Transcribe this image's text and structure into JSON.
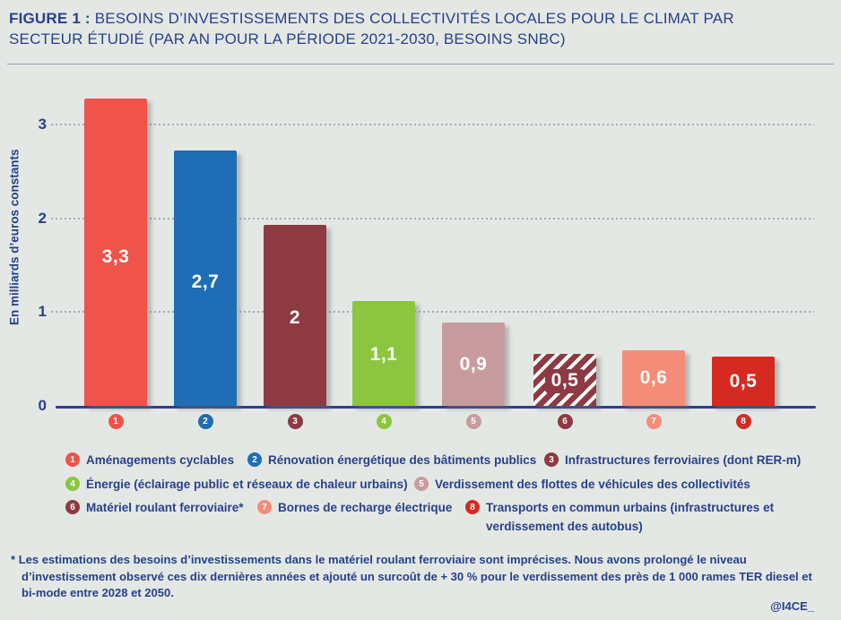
{
  "title": {
    "bold": "FIGURE 1 :",
    "line1": "BESOINS D’INVESTISSEMENTS DES COLLECTIVITÉS LOCALES POUR LE CLIMAT PAR",
    "line2": "SECTEUR ÉTUDIÉ (PAR AN POUR LA PÉRIODE 2021-2030, BESOINS SNBC)"
  },
  "chart_data": {
    "type": "bar",
    "title": "Besoins d’investissements des collectivités locales pour le climat par secteur étudié (par an pour la période 2021-2030, besoins SNBC)",
    "ylabel": "En milliards d’euros constants",
    "xlabel": "",
    "yticks": [
      0,
      1,
      2,
      3
    ],
    "ylim": [
      0,
      3.5
    ],
    "grid": "horizontal dotted lines at 1, 2, 3",
    "legend_position": "below",
    "categories": [
      "Aménagements cyclables",
      "Rénovation énergétique des bâtiments publics",
      "Infrastructures ferroviaires (dont RER-m)",
      "Énergie (éclairage public et réseaux de chaleur urbains)",
      "Verdissement des flottes de véhicules des collectivités",
      "Matériel roulant ferroviaire*",
      "Bornes de recharge électrique",
      "Transports en commun urbains (infrastructures et verdissement des autobus)"
    ],
    "values": [
      3.3,
      2.7,
      2,
      1.1,
      0.9,
      0.5,
      0.6,
      0.5
    ],
    "value_labels": [
      "3,3",
      "2,7",
      "2",
      "1,1",
      "0,9",
      "0,5",
      "0,6",
      "0,5"
    ],
    "badge_numbers": [
      "1",
      "2",
      "3",
      "4",
      "5",
      "6",
      "7",
      "8"
    ],
    "bar_colors": [
      "#F0534A",
      "#1F6DB4",
      "#8E3A42",
      "#8CC540",
      "#C89C9E",
      "#8E3A42",
      "#F58C78",
      "#D42A22"
    ],
    "hatched_indices": [
      5
    ],
    "drawn_values": [
      3.28,
      2.72,
      1.93,
      1.12,
      0.89,
      0.55,
      0.59,
      0.53
    ]
  },
  "legend": {
    "rows": [
      [
        {
          "num": "1",
          "label": "Aménagements cyclables",
          "color": "#F0534A"
        },
        {
          "num": "2",
          "label": "Rénovation énergétique des bâtiments publics",
          "color": "#1F6DB4"
        },
        {
          "num": "3",
          "label": "Infrastructures ferroviaires (dont RER-m)",
          "color": "#8E3A42"
        }
      ],
      [
        {
          "num": "4",
          "label": "Énergie (éclairage public et réseaux de chaleur urbains)",
          "color": "#8CC540"
        },
        {
          "num": "5",
          "label": "Verdissement des flottes de véhicules des collectivités",
          "color": "#C89C9E"
        }
      ],
      [
        {
          "num": "6",
          "label": "Matériel roulant ferroviaire*",
          "color": "#8E3A42"
        },
        {
          "num": "7",
          "label": "Bornes de recharge électrique",
          "color": "#F58C78"
        },
        {
          "num": "8",
          "label": "Transports en commun urbains (infrastructures et verdissement des autobus)",
          "color": "#D42A22"
        }
      ]
    ]
  },
  "footnote": {
    "marker": "*",
    "text": "Les estimations des besoins d’investissements dans le matériel roulant ferroviaire sont imprécises. Nous avons prolongé le niveau d’investissement observé ces dix dernières années et ajouté un surcoût de + 30 % pour le verdissement des près de 1 000 rames TER diesel et bi-mode entre 2028 et 2050."
  },
  "credit": "@I4CE_",
  "colors": {
    "background": "#E4E8E4",
    "text_navy": "#26418C",
    "axis_line": "#2C3E94",
    "gridline": "#A2AABC",
    "hatch_stripe": "#FFFFFF"
  }
}
